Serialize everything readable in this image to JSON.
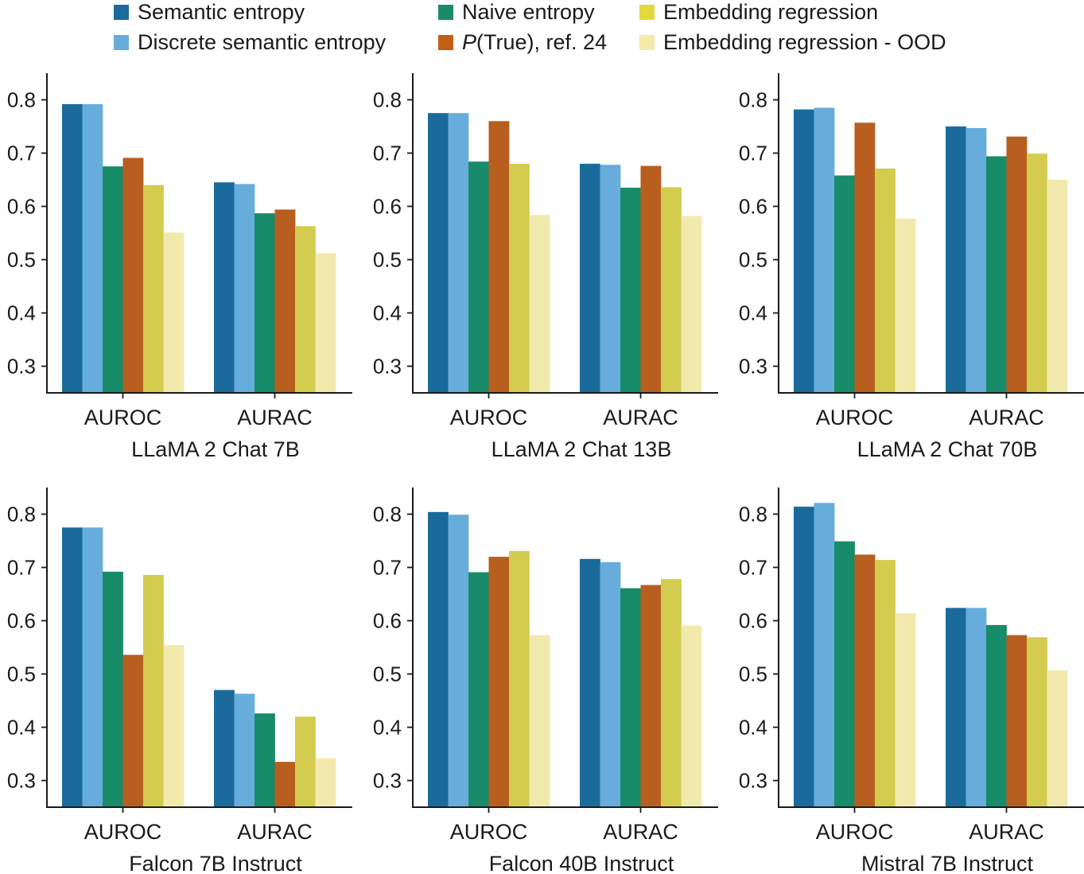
{
  "legend": {
    "items": [
      {
        "prefix": "",
        "label": "Semantic entropy",
        "color": "#1a6b9c"
      },
      {
        "prefix": "",
        "label": "Naive entropy",
        "color": "#188b68"
      },
      {
        "prefix": "",
        "label": "Embedding regression",
        "color": "#e3d93a"
      },
      {
        "prefix": "",
        "label": "Discrete semantic entropy",
        "color": "#67addb"
      },
      {
        "prefix": "P",
        "label": "(True), ref. 24",
        "color": "#c25f14"
      },
      {
        "prefix": "",
        "label": "Embedding regression - OOD",
        "color": "#f3eba7"
      }
    ]
  },
  "bar_colors": [
    "#1a6b9c",
    "#67addb",
    "#188b68",
    "#b85e1f",
    "#d3cc4f",
    "#f2eaac"
  ],
  "chart_data": [
    {
      "type": "bar",
      "title": "LLaMA 2 Chat 7B",
      "categories": [
        "AUROC",
        "AURAC"
      ],
      "series": [
        {
          "name": "Semantic entropy",
          "values": [
            0.792,
            0.645
          ]
        },
        {
          "name": "Discrete semantic entropy",
          "values": [
            0.792,
            0.642
          ]
        },
        {
          "name": "Naive entropy",
          "values": [
            0.675,
            0.587
          ]
        },
        {
          "name": "P(True), ref. 24",
          "values": [
            0.691,
            0.594
          ]
        },
        {
          "name": "Embedding regression",
          "values": [
            0.64,
            0.563
          ]
        },
        {
          "name": "Embedding regression - OOD",
          "values": [
            0.551,
            0.512
          ]
        }
      ],
      "yticks": [
        "0.3",
        "0.4",
        "0.5",
        "0.6",
        "0.7",
        "0.8"
      ],
      "ylim": [
        0.25,
        0.85
      ]
    },
    {
      "type": "bar",
      "title": "LLaMA 2 Chat 13B",
      "categories": [
        "AUROC",
        "AURAC"
      ],
      "series": [
        {
          "name": "Semantic entropy",
          "values": [
            0.775,
            0.68
          ]
        },
        {
          "name": "Discrete semantic entropy",
          "values": [
            0.775,
            0.678
          ]
        },
        {
          "name": "Naive entropy",
          "values": [
            0.684,
            0.635
          ]
        },
        {
          "name": "P(True), ref. 24",
          "values": [
            0.76,
            0.676
          ]
        },
        {
          "name": "Embedding regression",
          "values": [
            0.68,
            0.636
          ]
        },
        {
          "name": "Embedding regression - OOD",
          "values": [
            0.584,
            0.582
          ]
        }
      ],
      "yticks": [
        "0.3",
        "0.4",
        "0.5",
        "0.6",
        "0.7",
        "0.8"
      ],
      "ylim": [
        0.25,
        0.85
      ]
    },
    {
      "type": "bar",
      "title": "LLaMA 2 Chat 70B",
      "categories": [
        "AUROC",
        "AURAC"
      ],
      "series": [
        {
          "name": "Semantic entropy",
          "values": [
            0.782,
            0.75
          ]
        },
        {
          "name": "Discrete semantic entropy",
          "values": [
            0.785,
            0.747
          ]
        },
        {
          "name": "Naive entropy",
          "values": [
            0.658,
            0.694
          ]
        },
        {
          "name": "P(True), ref. 24",
          "values": [
            0.757,
            0.731
          ]
        },
        {
          "name": "Embedding regression",
          "values": [
            0.671,
            0.699
          ]
        },
        {
          "name": "Embedding regression - OOD",
          "values": [
            0.577,
            0.65
          ]
        }
      ],
      "yticks": [
        "0.3",
        "0.4",
        "0.5",
        "0.6",
        "0.7",
        "0.8"
      ],
      "ylim": [
        0.25,
        0.85
      ]
    },
    {
      "type": "bar",
      "title": "Falcon 7B Instruct",
      "categories": [
        "AUROC",
        "AURAC"
      ],
      "series": [
        {
          "name": "Semantic entropy",
          "values": [
            0.775,
            0.47
          ]
        },
        {
          "name": "Discrete semantic entropy",
          "values": [
            0.775,
            0.463
          ]
        },
        {
          "name": "Naive entropy",
          "values": [
            0.692,
            0.426
          ]
        },
        {
          "name": "P(True), ref. 24",
          "values": [
            0.536,
            0.335
          ]
        },
        {
          "name": "Embedding regression",
          "values": [
            0.686,
            0.42
          ]
        },
        {
          "name": "Embedding regression - OOD",
          "values": [
            0.554,
            0.342
          ]
        }
      ],
      "yticks": [
        "0.3",
        "0.4",
        "0.5",
        "0.6",
        "0.7",
        "0.8"
      ],
      "ylim": [
        0.25,
        0.85
      ]
    },
    {
      "type": "bar",
      "title": "Falcon 40B Instruct",
      "categories": [
        "AUROC",
        "AURAC"
      ],
      "series": [
        {
          "name": "Semantic entropy",
          "values": [
            0.804,
            0.716
          ]
        },
        {
          "name": "Discrete semantic entropy",
          "values": [
            0.799,
            0.71
          ]
        },
        {
          "name": "Naive entropy",
          "values": [
            0.691,
            0.661
          ]
        },
        {
          "name": "P(True), ref. 24",
          "values": [
            0.72,
            0.667
          ]
        },
        {
          "name": "Embedding regression",
          "values": [
            0.731,
            0.678
          ]
        },
        {
          "name": "Embedding regression - OOD",
          "values": [
            0.573,
            0.591
          ]
        }
      ],
      "yticks": [
        "0.3",
        "0.4",
        "0.5",
        "0.6",
        "0.7",
        "0.8"
      ],
      "ylim": [
        0.25,
        0.85
      ]
    },
    {
      "type": "bar",
      "title": "Mistral 7B Instruct",
      "categories": [
        "AUROC",
        "AURAC"
      ],
      "series": [
        {
          "name": "Semantic entropy",
          "values": [
            0.814,
            0.624
          ]
        },
        {
          "name": "Discrete semantic entropy",
          "values": [
            0.821,
            0.624
          ]
        },
        {
          "name": "Naive entropy",
          "values": [
            0.749,
            0.592
          ]
        },
        {
          "name": "P(True), ref. 24",
          "values": [
            0.724,
            0.573
          ]
        },
        {
          "name": "Embedding regression",
          "values": [
            0.714,
            0.569
          ]
        },
        {
          "name": "Embedding regression - OOD",
          "values": [
            0.614,
            0.507
          ]
        }
      ],
      "yticks": [
        "0.3",
        "0.4",
        "0.5",
        "0.6",
        "0.7",
        "0.8"
      ],
      "ylim": [
        0.25,
        0.85
      ]
    }
  ]
}
